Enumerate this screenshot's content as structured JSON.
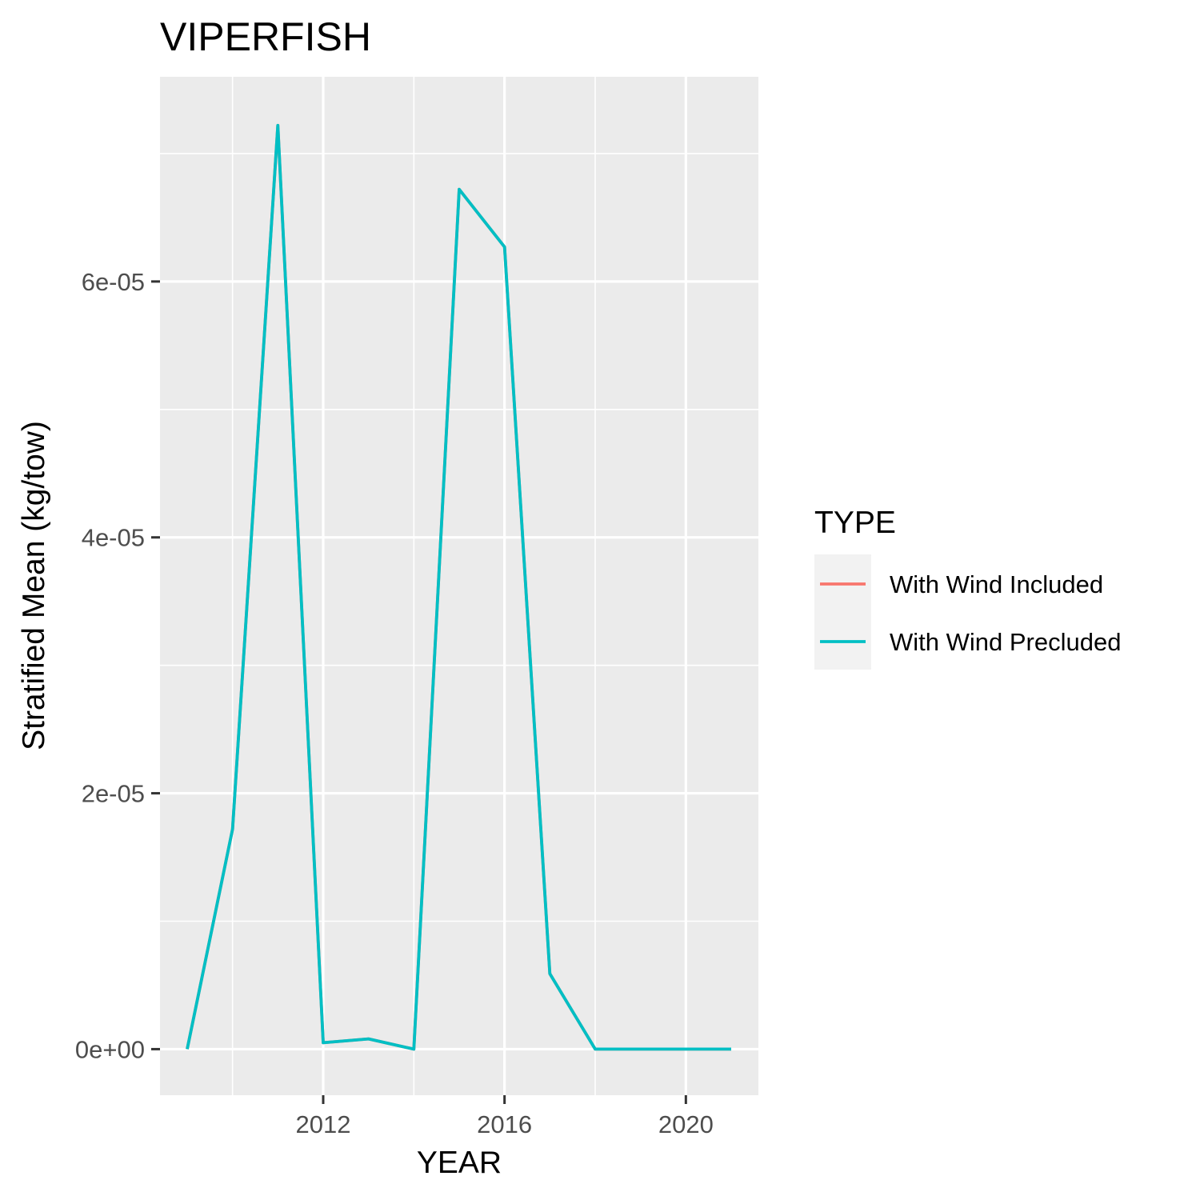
{
  "chart_data": {
    "type": "line",
    "title": "VIPERFISH",
    "xlabel": "YEAR",
    "ylabel": "Stratified Mean (kg/tow)",
    "x": [
      2009,
      2010,
      2011,
      2012,
      2013,
      2014,
      2015,
      2016,
      2017,
      2018,
      2019,
      2020,
      2021
    ],
    "series": [
      {
        "name": "With Wind Included",
        "color": "#F8766D",
        "values": [
          0,
          1.72e-05,
          7.22e-05,
          5e-07,
          8e-07,
          0,
          6.72e-05,
          6.27e-05,
          5.9e-06,
          0,
          0,
          0,
          0
        ]
      },
      {
        "name": "With Wind Precluded",
        "color": "#00BFC4",
        "values": [
          0,
          1.72e-05,
          7.22e-05,
          5e-07,
          8e-07,
          0,
          6.72e-05,
          6.27e-05,
          5.9e-06,
          0,
          0,
          0,
          0
        ]
      }
    ],
    "xlim": [
      2008.4,
      2021.6
    ],
    "ylim": [
      -3.6e-06,
      7.6e-05
    ],
    "x_ticks": [
      2012,
      2016,
      2020
    ],
    "x_tick_labels": [
      "2012",
      "2016",
      "2020"
    ],
    "y_ticks": [
      0,
      2e-05,
      4e-05,
      6e-05
    ],
    "y_tick_labels": [
      "0e+00",
      "2e-05",
      "4e-05",
      "6e-05"
    ],
    "grid": true,
    "legend": {
      "title": "TYPE",
      "position": "right"
    },
    "panel_background": "#EBEBEB",
    "grid_color": "#FFFFFF"
  }
}
